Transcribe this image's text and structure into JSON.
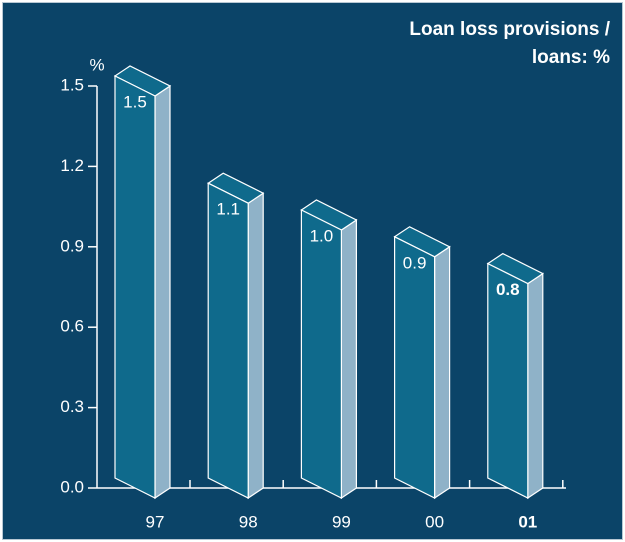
{
  "chart_data": {
    "type": "bar3d",
    "title": "Loan loss provisions / loans: %",
    "ylabel": "%",
    "categories": [
      "97",
      "98",
      "99",
      "00",
      "01"
    ],
    "values": [
      1.5,
      1.1,
      1.0,
      0.9,
      0.8
    ],
    "value_labels": [
      "1.5",
      "1.1",
      "1.0",
      "0.9",
      "0.8"
    ],
    "color": "#0f6a8c",
    "ylim": [
      0,
      1.5
    ],
    "yticks": [
      {
        "value": 0,
        "label": "0.0"
      },
      0.3,
      0.6,
      0.9,
      1.2,
      1.5
    ]
  }
}
